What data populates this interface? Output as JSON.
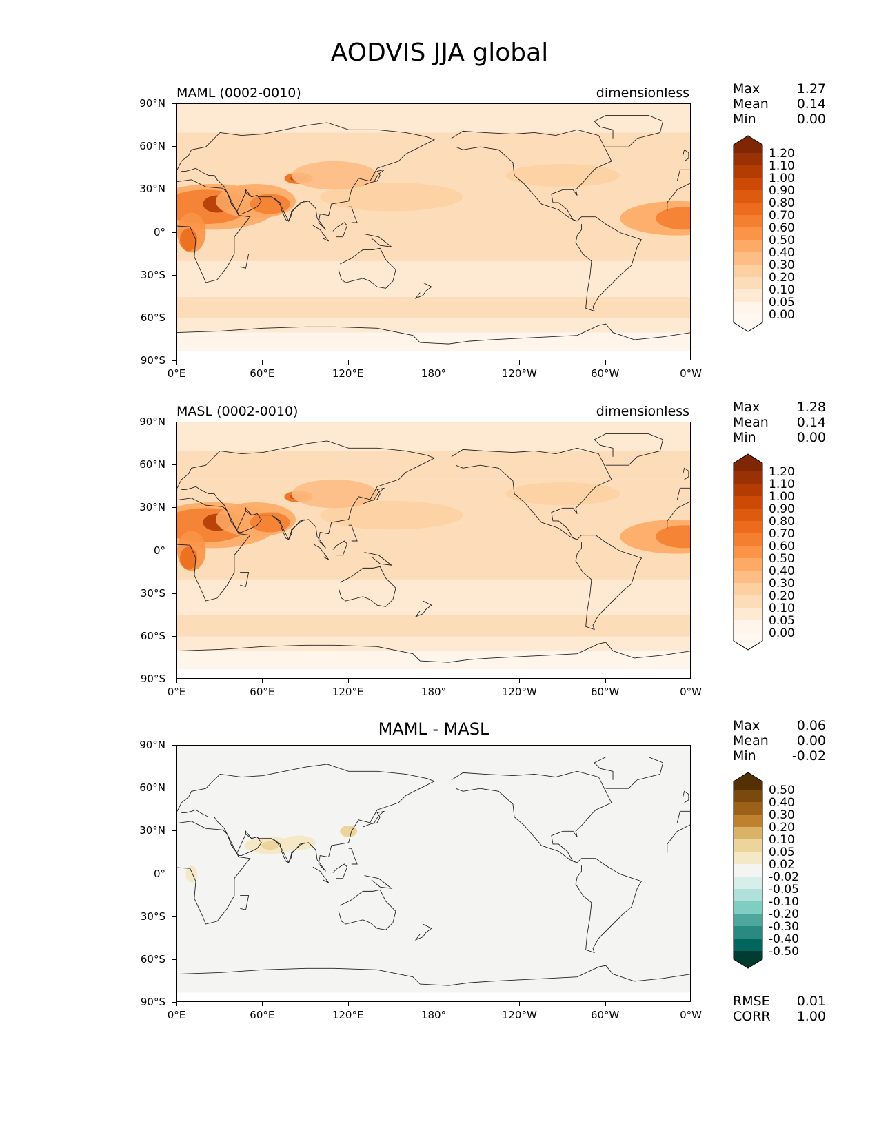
{
  "figure_title": "AODVIS JJA global",
  "x_ticks": [
    "0°E",
    "60°E",
    "120°E",
    "180°",
    "120°W",
    "60°W",
    "0°W"
  ],
  "y_ticks": [
    "90°N",
    "60°N",
    "30°N",
    "0°",
    "30°S",
    "60°S",
    "90°S"
  ],
  "panels": [
    {
      "left_title": "MAML (0002-0010)",
      "right_title": "dimensionless",
      "center_title": "",
      "stats": [
        {
          "label": "Max",
          "value": "1.27"
        },
        {
          "label": "Mean",
          "value": "0.14"
        },
        {
          "label": "Min",
          "value": "0.00"
        }
      ],
      "colorbar_labels": [
        "1.20",
        "1.10",
        "1.00",
        "0.90",
        "0.80",
        "0.70",
        "0.60",
        "0.50",
        "0.40",
        "0.30",
        "0.20",
        "0.10",
        "0.05",
        "0.00"
      ],
      "colorbar_colors": [
        "#7f2704",
        "#993104",
        "#b33c03",
        "#cc4a05",
        "#de5a0f",
        "#ec6b1c",
        "#f57f30",
        "#fb9447",
        "#fdaa66",
        "#fdbd85",
        "#fdd0a2",
        "#fddcb9",
        "#feead2",
        "#fff5eb",
        "#fff8f1"
      ],
      "colormap": "Oranges",
      "extra_stats": []
    },
    {
      "left_title": "MASL (0002-0010)",
      "right_title": "dimensionless",
      "center_title": "",
      "stats": [
        {
          "label": "Max",
          "value": "1.28"
        },
        {
          "label": "Mean",
          "value": "0.14"
        },
        {
          "label": "Min",
          "value": "0.00"
        }
      ],
      "colorbar_labels": [
        "1.20",
        "1.10",
        "1.00",
        "0.90",
        "0.80",
        "0.70",
        "0.60",
        "0.50",
        "0.40",
        "0.30",
        "0.20",
        "0.10",
        "0.05",
        "0.00"
      ],
      "colorbar_colors": [
        "#7f2704",
        "#993104",
        "#b33c03",
        "#cc4a05",
        "#de5a0f",
        "#ec6b1c",
        "#f57f30",
        "#fb9447",
        "#fdaa66",
        "#fdbd85",
        "#fdd0a2",
        "#fddcb9",
        "#feead2",
        "#fff5eb",
        "#fff8f1"
      ],
      "colormap": "Oranges",
      "extra_stats": []
    },
    {
      "left_title": "",
      "right_title": "",
      "center_title": "MAML - MASL",
      "stats": [
        {
          "label": "Max",
          "value": "0.06"
        },
        {
          "label": "Mean",
          "value": "0.00"
        },
        {
          "label": "Min",
          "value": "-0.02"
        }
      ],
      "colorbar_labels": [
        "0.50",
        "0.40",
        "0.30",
        "0.20",
        "0.10",
        "0.05",
        "0.02",
        "-0.02",
        "-0.05",
        "-0.10",
        "-0.20",
        "-0.30",
        "-0.40",
        "-0.50"
      ],
      "colorbar_colors": [
        "#543005",
        "#7a4a0d",
        "#9c6119",
        "#bf812d",
        "#d8b368",
        "#ecd49d",
        "#f5e8c6",
        "#f4f4f2",
        "#d7eeeb",
        "#b0e0d9",
        "#80cdc1",
        "#4ea79c",
        "#2a8a82",
        "#01665e",
        "#003c30"
      ],
      "colormap": "BrBG",
      "extra_stats": [
        {
          "label": "RMSE",
          "value": "0.01"
        },
        {
          "label": "CORR",
          "value": "1.00"
        }
      ]
    }
  ]
}
